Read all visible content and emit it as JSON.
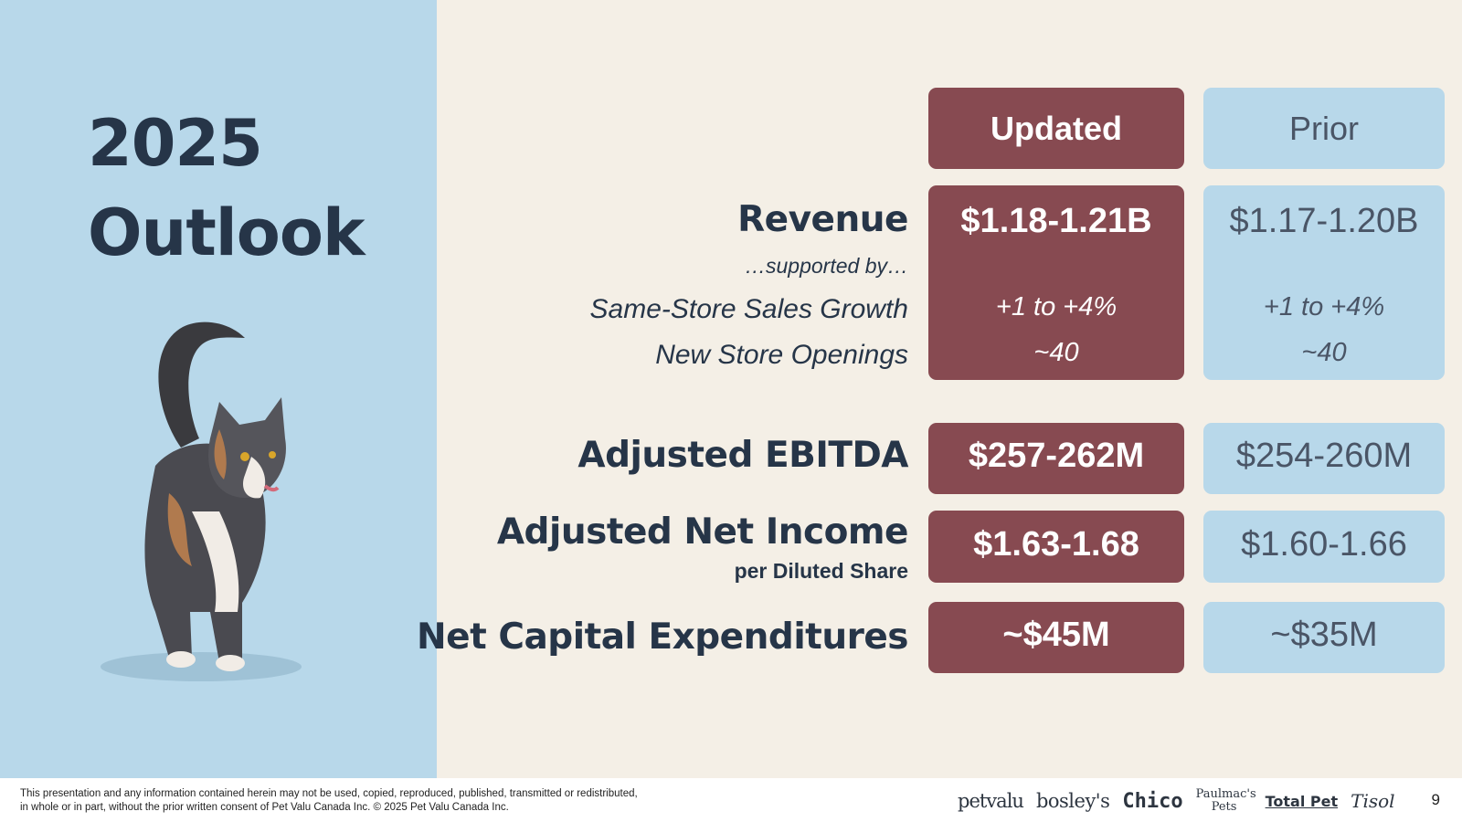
{
  "title": {
    "line1": "2025",
    "line2": "Outlook"
  },
  "columns": {
    "updated": "Updated",
    "prior": "Prior"
  },
  "rows": {
    "revenue": {
      "label": "Revenue",
      "sub": "…supported by…",
      "updated": "$1.18-1.21B",
      "prior": "$1.17-1.20B"
    },
    "sssg": {
      "label": "Same-Store Sales Growth",
      "updated": "+1 to +4%",
      "prior": "+1 to +4%"
    },
    "nso": {
      "label": "New Store Openings",
      "updated": "~40",
      "prior": "~40"
    },
    "ebitda": {
      "label": "Adjusted EBITDA",
      "updated": "$257-262M",
      "prior": "$254-260M"
    },
    "eps": {
      "label": "Adjusted Net Income",
      "sub": "per Diluted Share",
      "updated": "$1.63-1.68",
      "prior": "$1.60-1.66"
    },
    "capex": {
      "label": "Net Capital Expenditures",
      "updated": "~$45M",
      "prior": "~$35M"
    }
  },
  "footer": {
    "disclaimer": "This presentation and any information contained herein may not be used, copied, reproduced, published, transmitted or redistributed,\n in whole or in part, without the prior written consent of Pet Valu Canada Inc. © 2025 Pet Valu Canada Inc.",
    "brands": [
      "petvalu",
      "bosley's",
      "Chico",
      "Paulmac's Pets",
      "Total Pet",
      "Tisol"
    ],
    "page": "9"
  },
  "colors": {
    "updated": "#874a51",
    "prior": "#b8d8ea",
    "background": "#f4efe6",
    "text": "#263548"
  },
  "image": "calico-cat-photo"
}
